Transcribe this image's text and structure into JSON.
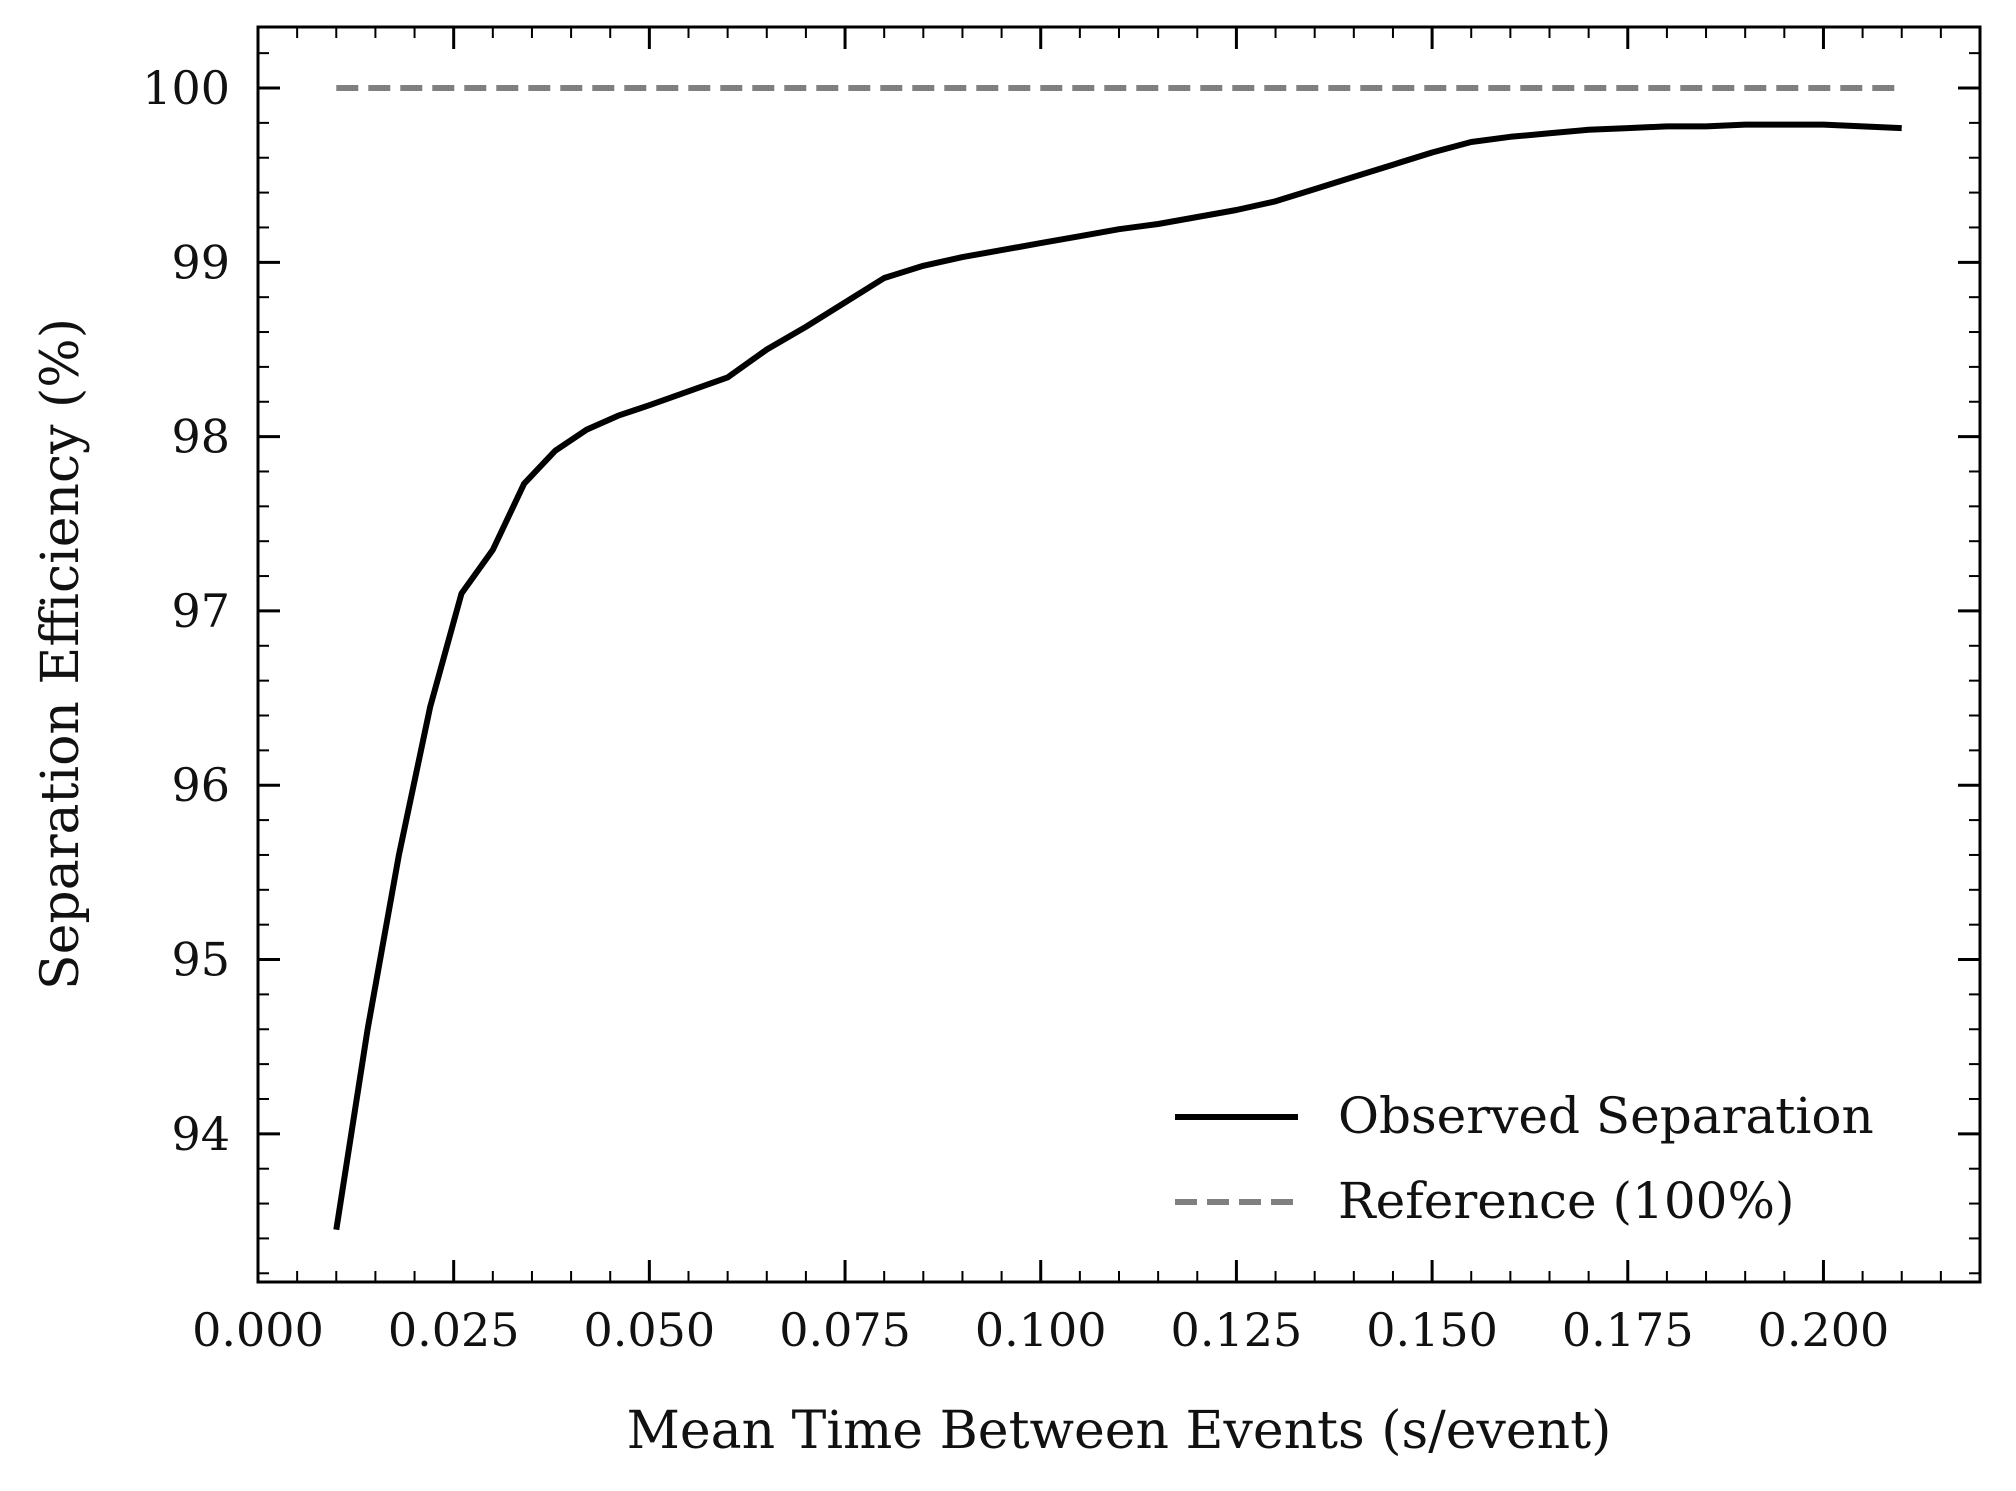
{
  "chart_data": {
    "type": "line",
    "xlabel": "Mean Time Between Events (s/event)",
    "ylabel": "Separation Efficiency (%)",
    "xlim": [
      0.0,
      0.22
    ],
    "ylim": [
      93.15,
      100.35
    ],
    "x_ticks": [
      0.0,
      0.025,
      0.05,
      0.075,
      0.1,
      0.125,
      0.15,
      0.175,
      0.2
    ],
    "x_tick_labels": [
      "0.000",
      "0.025",
      "0.050",
      "0.075",
      "0.100",
      "0.125",
      "0.150",
      "0.175",
      "0.200"
    ],
    "y_ticks": [
      94,
      95,
      96,
      97,
      98,
      99,
      100
    ],
    "y_tick_labels": [
      "94",
      "95",
      "96",
      "97",
      "98",
      "99",
      "100"
    ],
    "grid": false,
    "legend_position": "lower-right",
    "series": [
      {
        "name": "Observed Separation",
        "style": "solid",
        "color": "#000000",
        "x": [
          0.01,
          0.014,
          0.018,
          0.022,
          0.026,
          0.03,
          0.034,
          0.038,
          0.042,
          0.046,
          0.05,
          0.055,
          0.06,
          0.065,
          0.07,
          0.075,
          0.08,
          0.085,
          0.09,
          0.095,
          0.1,
          0.105,
          0.11,
          0.115,
          0.12,
          0.125,
          0.13,
          0.135,
          0.14,
          0.145,
          0.15,
          0.155,
          0.16,
          0.165,
          0.17,
          0.175,
          0.18,
          0.185,
          0.19,
          0.195,
          0.2,
          0.205,
          0.21
        ],
        "y": [
          93.45,
          94.6,
          95.6,
          96.45,
          97.1,
          97.35,
          97.73,
          97.92,
          98.04,
          98.12,
          98.18,
          98.26,
          98.34,
          98.5,
          98.63,
          98.77,
          98.91,
          98.98,
          99.03,
          99.07,
          99.11,
          99.15,
          99.19,
          99.22,
          99.26,
          99.3,
          99.35,
          99.42,
          99.49,
          99.56,
          99.63,
          99.69,
          99.72,
          99.74,
          99.76,
          99.77,
          99.78,
          99.78,
          99.79,
          99.79,
          99.79,
          99.78,
          99.77
        ]
      },
      {
        "name": "Reference (100%)",
        "style": "dashed",
        "color": "#808080",
        "x": [
          0.01,
          0.21
        ],
        "y": [
          100,
          100
        ]
      }
    ]
  }
}
